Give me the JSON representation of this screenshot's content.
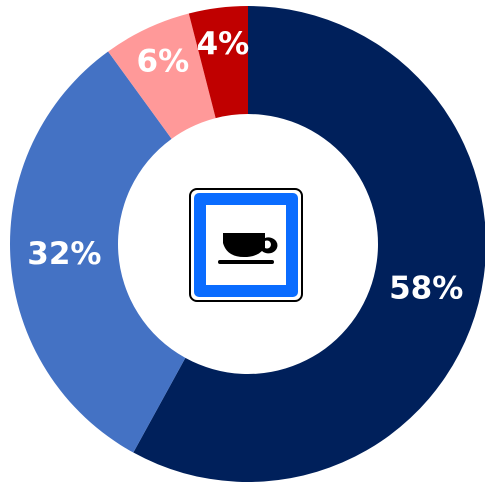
{
  "chart_data": {
    "type": "donut",
    "categories": [
      null,
      null,
      null,
      null
    ],
    "values": [
      58,
      32,
      6,
      4
    ],
    "value_labels": [
      "58%",
      "32%",
      "6%",
      "4%"
    ],
    "colors": [
      "#00205b",
      "#4472c4",
      "#ff9999",
      "#c00000"
    ]
  }
}
